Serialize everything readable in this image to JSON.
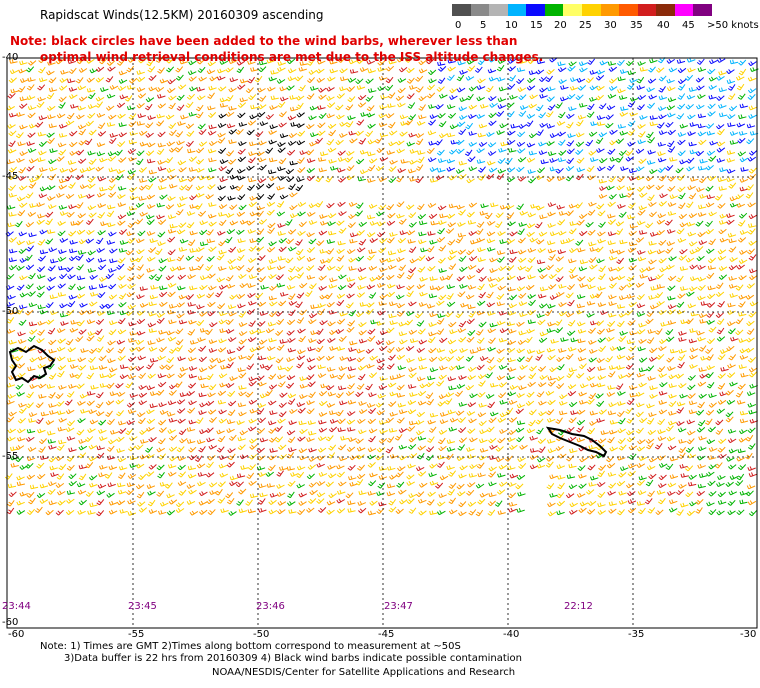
{
  "title": "Rapidscat Winds(12.5KM) 20160309 ascending",
  "note": {
    "line1": "Note: black circles have been added to the wind barbs, wherever less than",
    "line2": "optimal wind retrieval conditions are met due to the ISS altitude changes."
  },
  "legend": {
    "labels": [
      "0",
      "5",
      "10",
      "15",
      "20",
      "25",
      "30",
      "35",
      "40",
      "45",
      ">50 knots"
    ],
    "colors": [
      "#505050",
      "#8a8a8a",
      "#b4b4b4",
      "#00b4ff",
      "#0a0aff",
      "#00b400",
      "#ffff66",
      "#ffd200",
      "#ff9a00",
      "#ff5a00",
      "#d21e1e",
      "#8b2a0a",
      "#ff00ff",
      "#800080"
    ]
  },
  "map": {
    "lon_labels": [
      "-60",
      "-55",
      "-50",
      "-45",
      "-40",
      "-35",
      "-30"
    ],
    "lat_labels": [
      "-40",
      "-45",
      "-50",
      "-55",
      "-60"
    ],
    "time_labels": [
      "23:44",
      "23:45",
      "23:46",
      "23:47",
      "22:12"
    ],
    "barb_colors": {
      "blue": "#0a0aff",
      "cyan": "#00b4ff",
      "green": "#00b400",
      "yellow": "#ffd200",
      "orange": "#ff9a00",
      "red": "#d21e1e",
      "black": "#000000"
    }
  },
  "footer": {
    "line1": "Note: 1) Times are GMT 2)Times along bottom correspond to measurement at ~50S",
    "line2": "3)Data buffer is 22 hrs from 20160309 4) Black wind barbs indicate possible contamination",
    "line3": "NOAA/NESDIS/Center for Satellite Applications and Research"
  }
}
